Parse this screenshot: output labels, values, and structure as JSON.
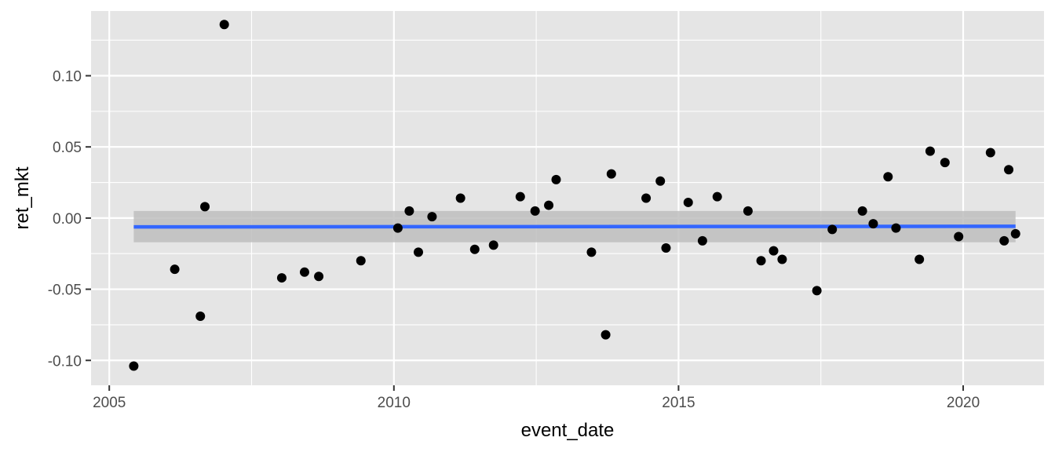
{
  "chart_data": {
    "type": "scatter",
    "title": "",
    "xlabel": "event_date",
    "ylabel": "ret_mkt",
    "xlim": [
      2004.68,
      2021.42
    ],
    "ylim": [
      -0.1175,
      0.1455
    ],
    "x_ticks": [
      2005,
      2010,
      2015,
      2020
    ],
    "x_tick_labels": [
      "2005",
      "2010",
      "2015",
      "2020"
    ],
    "y_ticks": [
      -0.1,
      -0.05,
      0.0,
      0.05,
      0.1
    ],
    "y_tick_labels": [
      "-0.10",
      "-0.05",
      "0.00",
      "0.05",
      "0.10"
    ],
    "grid": true,
    "legend": "none",
    "points": [
      {
        "x": 2005.43,
        "y": -0.104
      },
      {
        "x": 2006.15,
        "y": -0.036
      },
      {
        "x": 2006.6,
        "y": -0.069
      },
      {
        "x": 2006.68,
        "y": 0.008
      },
      {
        "x": 2007.02,
        "y": 0.136
      },
      {
        "x": 2008.03,
        "y": -0.042
      },
      {
        "x": 2008.43,
        "y": -0.038
      },
      {
        "x": 2008.68,
        "y": -0.041
      },
      {
        "x": 2009.42,
        "y": -0.03
      },
      {
        "x": 2010.07,
        "y": -0.007
      },
      {
        "x": 2010.27,
        "y": 0.005
      },
      {
        "x": 2010.43,
        "y": -0.024
      },
      {
        "x": 2010.67,
        "y": 0.001
      },
      {
        "x": 2011.17,
        "y": 0.014
      },
      {
        "x": 2011.42,
        "y": -0.022
      },
      {
        "x": 2011.75,
        "y": -0.019
      },
      {
        "x": 2012.22,
        "y": 0.015
      },
      {
        "x": 2012.48,
        "y": 0.005
      },
      {
        "x": 2012.72,
        "y": 0.009
      },
      {
        "x": 2012.85,
        "y": 0.027
      },
      {
        "x": 2013.47,
        "y": -0.024
      },
      {
        "x": 2013.72,
        "y": -0.082
      },
      {
        "x": 2013.82,
        "y": 0.031
      },
      {
        "x": 2014.43,
        "y": 0.014
      },
      {
        "x": 2014.68,
        "y": 0.026
      },
      {
        "x": 2014.78,
        "y": -0.021
      },
      {
        "x": 2015.17,
        "y": 0.011
      },
      {
        "x": 2015.42,
        "y": -0.016
      },
      {
        "x": 2015.68,
        "y": 0.015
      },
      {
        "x": 2016.22,
        "y": 0.005
      },
      {
        "x": 2016.45,
        "y": -0.03
      },
      {
        "x": 2016.67,
        "y": -0.023
      },
      {
        "x": 2016.82,
        "y": -0.029
      },
      {
        "x": 2017.43,
        "y": -0.051
      },
      {
        "x": 2017.7,
        "y": -0.008
      },
      {
        "x": 2018.23,
        "y": 0.005
      },
      {
        "x": 2018.42,
        "y": -0.004
      },
      {
        "x": 2018.68,
        "y": 0.029
      },
      {
        "x": 2018.82,
        "y": -0.007
      },
      {
        "x": 2019.23,
        "y": -0.029
      },
      {
        "x": 2019.42,
        "y": 0.047
      },
      {
        "x": 2019.68,
        "y": 0.039
      },
      {
        "x": 2019.92,
        "y": -0.013
      },
      {
        "x": 2020.48,
        "y": 0.046
      },
      {
        "x": 2020.72,
        "y": -0.016
      },
      {
        "x": 2020.8,
        "y": 0.034
      },
      {
        "x": 2020.92,
        "y": -0.011
      }
    ],
    "fit": {
      "x_range": [
        2005.43,
        2020.92
      ],
      "y_start": -0.0062,
      "y_end": -0.0058,
      "band_lower": -0.017,
      "band_upper": 0.005
    },
    "colors": {
      "panel": "#e5e5e5",
      "grid_major": "#ffffff",
      "point": "#000000",
      "fit_line": "#3366ff",
      "band": "#bebebe",
      "tick_text": "#4d4d4d",
      "tick_mark": "#333333"
    }
  }
}
